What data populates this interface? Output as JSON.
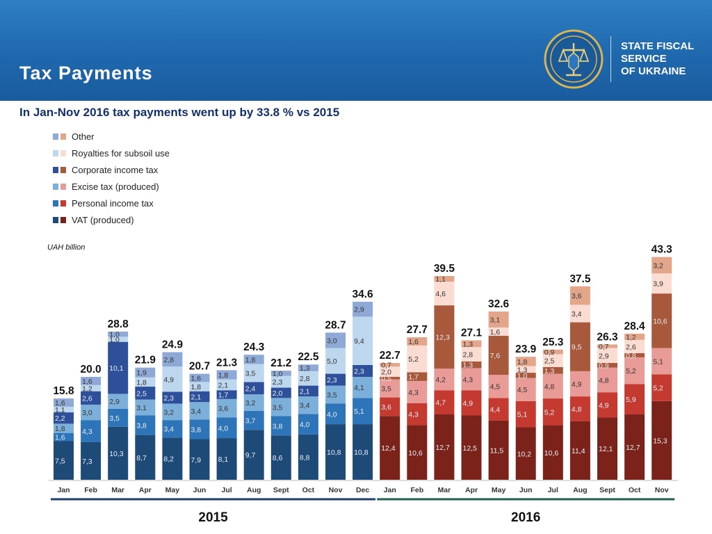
{
  "header": {
    "title": "Tax Payments",
    "org_name": [
      "STATE FISCAL",
      "SERVICE",
      "OF UKRAINE"
    ]
  },
  "subtitle": "In Jan-Nov 2016 tax payments went up by 33.8 % vs 2015",
  "colors": {
    "header_blue": "#1f68ad",
    "title_navy": "#13306b"
  },
  "chart_data": {
    "type": "bar",
    "stacked": true,
    "unit_label": "UAH billion",
    "legend_position": "top-left",
    "legend": [
      "Other",
      "Royalties for subsoil use",
      "Corporate income tax",
      "Excise tax (produced)",
      "Personal income tax",
      "VAT (produced)"
    ],
    "palettes": {
      "2015": {
        "VAT (produced)": "#1e4a78",
        "Personal income tax": "#2e74b8",
        "Excise tax (produced)": "#7cafd9",
        "Corporate income tax": "#2e4f9a",
        "Royalties for subsoil use": "#bdd7ee",
        "Other": "#8fa9d6"
      },
      "2016": {
        "VAT (produced)": "#7b231b",
        "Personal income tax": "#c53a30",
        "Excise tax (produced)": "#e89b97",
        "Corporate income tax": "#a8583b",
        "Royalties for subsoil use": "#fadcd3",
        "Other": "#e4a68a"
      }
    },
    "groups": [
      {
        "year": "2015",
        "months": [
          {
            "month": "Jan",
            "total": "15.8",
            "segments": [
              {
                "name": "VAT (produced)",
                "value": "7,5"
              },
              {
                "name": "Personal income tax",
                "value": "1,6"
              },
              {
                "name": "Excise tax (produced)",
                "value": "1,8"
              },
              {
                "name": "Corporate income tax",
                "value": "2,2"
              },
              {
                "name": "Royalties for subsoil use",
                "value": "1,1"
              },
              {
                "name": "Other",
                "value": "1,6"
              }
            ]
          },
          {
            "month": "Feb",
            "total": "20.0",
            "segments": [
              {
                "name": "VAT (produced)",
                "value": "7,3"
              },
              {
                "name": "Personal income tax",
                "value": "4,3"
              },
              {
                "name": "Excise tax (produced)",
                "value": "3,0"
              },
              {
                "name": "Corporate income tax",
                "value": "2,6"
              },
              {
                "name": "Royalties for subsoil use",
                "value": "1,2"
              },
              {
                "name": "Other",
                "value": "1,6"
              }
            ]
          },
          {
            "month": "Mar",
            "total": "28.8",
            "segments": [
              {
                "name": "VAT (produced)",
                "value": "10,3"
              },
              {
                "name": "Personal income tax",
                "value": "3,5"
              },
              {
                "name": "Excise tax (produced)",
                "value": "2,9"
              },
              {
                "name": "Corporate income tax",
                "value": "10,1"
              },
              {
                "name": "Royalties for subsoil use",
                "value": "1,0"
              },
              {
                "name": "Other",
                "value": "1,0"
              }
            ]
          },
          {
            "month": "Apr",
            "total": "21.9",
            "segments": [
              {
                "name": "VAT (produced)",
                "value": "8,7"
              },
              {
                "name": "Personal income tax",
                "value": "3,8"
              },
              {
                "name": "Excise tax (produced)",
                "value": "3,1"
              },
              {
                "name": "Corporate income tax",
                "value": "2,5"
              },
              {
                "name": "Royalties for subsoil use",
                "value": "1,8"
              },
              {
                "name": "Other",
                "value": "1,9"
              }
            ]
          },
          {
            "month": "May",
            "total": "24.9",
            "segments": [
              {
                "name": "VAT (produced)",
                "value": "8,2"
              },
              {
                "name": "Personal income tax",
                "value": "3,4"
              },
              {
                "name": "Excise tax (produced)",
                "value": "3,2"
              },
              {
                "name": "Corporate income tax",
                "value": "2,3"
              },
              {
                "name": "Royalties for subsoil use",
                "value": "4,9"
              },
              {
                "name": "Other",
                "value": "2,8"
              }
            ]
          },
          {
            "month": "Jun",
            "total": "20.7",
            "segments": [
              {
                "name": "VAT (produced)",
                "value": "7,9"
              },
              {
                "name": "Personal income tax",
                "value": "3,8"
              },
              {
                "name": "Excise tax (produced)",
                "value": "3,4"
              },
              {
                "name": "Corporate income tax",
                "value": "2,1"
              },
              {
                "name": "Royalties for subsoil use",
                "value": "1,8"
              },
              {
                "name": "Other",
                "value": "1,6"
              }
            ]
          },
          {
            "month": "Jul",
            "total": "21.3",
            "segments": [
              {
                "name": "VAT (produced)",
                "value": "8,1"
              },
              {
                "name": "Personal income tax",
                "value": "4,0"
              },
              {
                "name": "Excise tax (produced)",
                "value": "3,6"
              },
              {
                "name": "Corporate income tax",
                "value": "1,7"
              },
              {
                "name": "Royalties for subsoil use",
                "value": "2,1"
              },
              {
                "name": "Other",
                "value": "1,8"
              }
            ]
          },
          {
            "month": "Aug",
            "total": "24.3",
            "segments": [
              {
                "name": "VAT (produced)",
                "value": "9,7"
              },
              {
                "name": "Personal income tax",
                "value": "3,7"
              },
              {
                "name": "Excise tax (produced)",
                "value": "3,2"
              },
              {
                "name": "Corporate income tax",
                "value": "2,4"
              },
              {
                "name": "Royalties for subsoil use",
                "value": "3,5"
              },
              {
                "name": "Other",
                "value": "1,8"
              }
            ]
          },
          {
            "month": "Sept",
            "total": "21.2",
            "segments": [
              {
                "name": "VAT (produced)",
                "value": "8,6"
              },
              {
                "name": "Personal income tax",
                "value": "3,8"
              },
              {
                "name": "Excise tax (produced)",
                "value": "3,5"
              },
              {
                "name": "Corporate income tax",
                "value": "2,0"
              },
              {
                "name": "Royalties for subsoil use",
                "value": "2,3"
              },
              {
                "name": "Other",
                "value": "1,0"
              }
            ]
          },
          {
            "month": "Oct",
            "total": "22.5",
            "segments": [
              {
                "name": "VAT (produced)",
                "value": "8,8"
              },
              {
                "name": "Personal income tax",
                "value": "4,0"
              },
              {
                "name": "Excise tax (produced)",
                "value": "3,4"
              },
              {
                "name": "Corporate income tax",
                "value": "2,1"
              },
              {
                "name": "Royalties for subsoil use",
                "value": "2,8"
              },
              {
                "name": "Other",
                "value": "1,3"
              }
            ]
          },
          {
            "month": "Nov",
            "total": "28.7",
            "segments": [
              {
                "name": "VAT (produced)",
                "value": "10,8"
              },
              {
                "name": "Personal income tax",
                "value": "4,0"
              },
              {
                "name": "Excise tax (produced)",
                "value": "3,5"
              },
              {
                "name": "Corporate income tax",
                "value": "2,3"
              },
              {
                "name": "Royalties for subsoil use",
                "value": "5,0"
              },
              {
                "name": "Other",
                "value": "3,0"
              }
            ]
          },
          {
            "month": "Dec",
            "total": "34.6",
            "segments": [
              {
                "name": "VAT (produced)",
                "value": "10,8"
              },
              {
                "name": "Personal income tax",
                "value": "5,1"
              },
              {
                "name": "Excise tax (produced)",
                "value": "4,1"
              },
              {
                "name": "Corporate income tax",
                "value": "2,3"
              },
              {
                "name": "Royalties for subsoil use",
                "value": "9,4"
              },
              {
                "name": "Other",
                "value": "2,9"
              }
            ]
          }
        ]
      },
      {
        "year": "2016",
        "months": [
          {
            "month": "Jan",
            "total": "22.7",
            "segments": [
              {
                "name": "VAT (produced)",
                "value": "12,4"
              },
              {
                "name": "Personal income tax",
                "value": "3,6"
              },
              {
                "name": "Excise tax (produced)",
                "value": "3,5"
              },
              {
                "name": "Corporate income tax",
                "value": "0,5"
              },
              {
                "name": "Royalties for subsoil use",
                "value": "2,0"
              },
              {
                "name": "Other",
                "value": "0,7"
              }
            ]
          },
          {
            "month": "Feb",
            "total": "27.7",
            "segments": [
              {
                "name": "VAT (produced)",
                "value": "10,6"
              },
              {
                "name": "Personal income tax",
                "value": "4,3"
              },
              {
                "name": "Excise tax (produced)",
                "value": "4,3"
              },
              {
                "name": "Corporate income tax",
                "value": "1,7"
              },
              {
                "name": "Royalties for subsoil use",
                "value": "5,2"
              },
              {
                "name": "Other",
                "value": "1,6"
              }
            ]
          },
          {
            "month": "Mar",
            "total": "39.5",
            "segments": [
              {
                "name": "VAT (produced)",
                "value": "12,7"
              },
              {
                "name": "Personal income tax",
                "value": "4,7"
              },
              {
                "name": "Excise tax (produced)",
                "value": "4,2"
              },
              {
                "name": "Corporate income tax",
                "value": "12,3"
              },
              {
                "name": "Royalties for subsoil use",
                "value": "4,6"
              },
              {
                "name": "Other",
                "value": "1,1"
              }
            ]
          },
          {
            "month": "Apr",
            "total": "27.1",
            "segments": [
              {
                "name": "VAT (produced)",
                "value": "12,5"
              },
              {
                "name": "Personal income tax",
                "value": "4,9"
              },
              {
                "name": "Excise tax (produced)",
                "value": "4,3"
              },
              {
                "name": "Corporate income tax",
                "value": "1,3"
              },
              {
                "name": "Royalties for subsoil use",
                "value": "2,8"
              },
              {
                "name": "Other",
                "value": "1,3"
              }
            ]
          },
          {
            "month": "May",
            "total": "32.6",
            "segments": [
              {
                "name": "VAT (produced)",
                "value": "11,5"
              },
              {
                "name": "Personal income tax",
                "value": "4,4"
              },
              {
                "name": "Excise tax (produced)",
                "value": "4,5"
              },
              {
                "name": "Corporate income tax",
                "value": "7,6"
              },
              {
                "name": "Royalties for subsoil use",
                "value": "1,6"
              },
              {
                "name": "Other",
                "value": "3,1"
              }
            ]
          },
          {
            "month": "Jun",
            "total": "23.9",
            "segments": [
              {
                "name": "VAT (produced)",
                "value": "10,2"
              },
              {
                "name": "Personal income tax",
                "value": "5,1"
              },
              {
                "name": "Excise tax (produced)",
                "value": "4,5"
              },
              {
                "name": "Corporate income tax",
                "value": "1,0"
              },
              {
                "name": "Royalties for subsoil use",
                "value": "1,3"
              },
              {
                "name": "Other",
                "value": "1,8"
              }
            ]
          },
          {
            "month": "Jul",
            "total": "25.3",
            "segments": [
              {
                "name": "VAT (produced)",
                "value": "10,6"
              },
              {
                "name": "Personal income tax",
                "value": "5,2"
              },
              {
                "name": "Excise tax (produced)",
                "value": "4,8"
              },
              {
                "name": "Corporate income tax",
                "value": "1,3"
              },
              {
                "name": "Royalties for subsoil use",
                "value": "2,5"
              },
              {
                "name": "Other",
                "value": "0,9"
              }
            ]
          },
          {
            "month": "Aug",
            "total": "37.5",
            "segments": [
              {
                "name": "VAT (produced)",
                "value": "11,4"
              },
              {
                "name": "Personal income tax",
                "value": "4,8"
              },
              {
                "name": "Excise tax (produced)",
                "value": "4,9"
              },
              {
                "name": "Corporate income tax",
                "value": "9,5"
              },
              {
                "name": "Royalties for subsoil use",
                "value": "3,4"
              },
              {
                "name": "Other",
                "value": "3,6"
              }
            ]
          },
          {
            "month": "Sept",
            "total": "26.3",
            "segments": [
              {
                "name": "VAT (produced)",
                "value": "12,1"
              },
              {
                "name": "Personal income tax",
                "value": "4,9"
              },
              {
                "name": "Excise tax (produced)",
                "value": "4,8"
              },
              {
                "name": "Corporate income tax",
                "value": "0,9"
              },
              {
                "name": "Royalties for subsoil use",
                "value": "2,9"
              },
              {
                "name": "Other",
                "value": "0,7"
              }
            ]
          },
          {
            "month": "Oct",
            "total": "28.4",
            "segments": [
              {
                "name": "VAT (produced)",
                "value": "12,7"
              },
              {
                "name": "Personal income tax",
                "value": "5,9"
              },
              {
                "name": "Excise tax (produced)",
                "value": "5,2"
              },
              {
                "name": "Corporate income tax",
                "value": "0,8"
              },
              {
                "name": "Royalties for subsoil use",
                "value": "2,6"
              },
              {
                "name": "Other",
                "value": "1,2"
              }
            ]
          },
          {
            "month": "Nov",
            "total": "43.3",
            "segments": [
              {
                "name": "VAT (produced)",
                "value": "15,3"
              },
              {
                "name": "Personal income tax",
                "value": "5,2"
              },
              {
                "name": "Excise tax (produced)",
                "value": "5,1"
              },
              {
                "name": "Corporate income tax",
                "value": "10,6"
              },
              {
                "name": "Royalties for subsoil use",
                "value": "3,9"
              },
              {
                "name": "Other",
                "value": "3,2"
              }
            ]
          }
        ]
      }
    ]
  }
}
